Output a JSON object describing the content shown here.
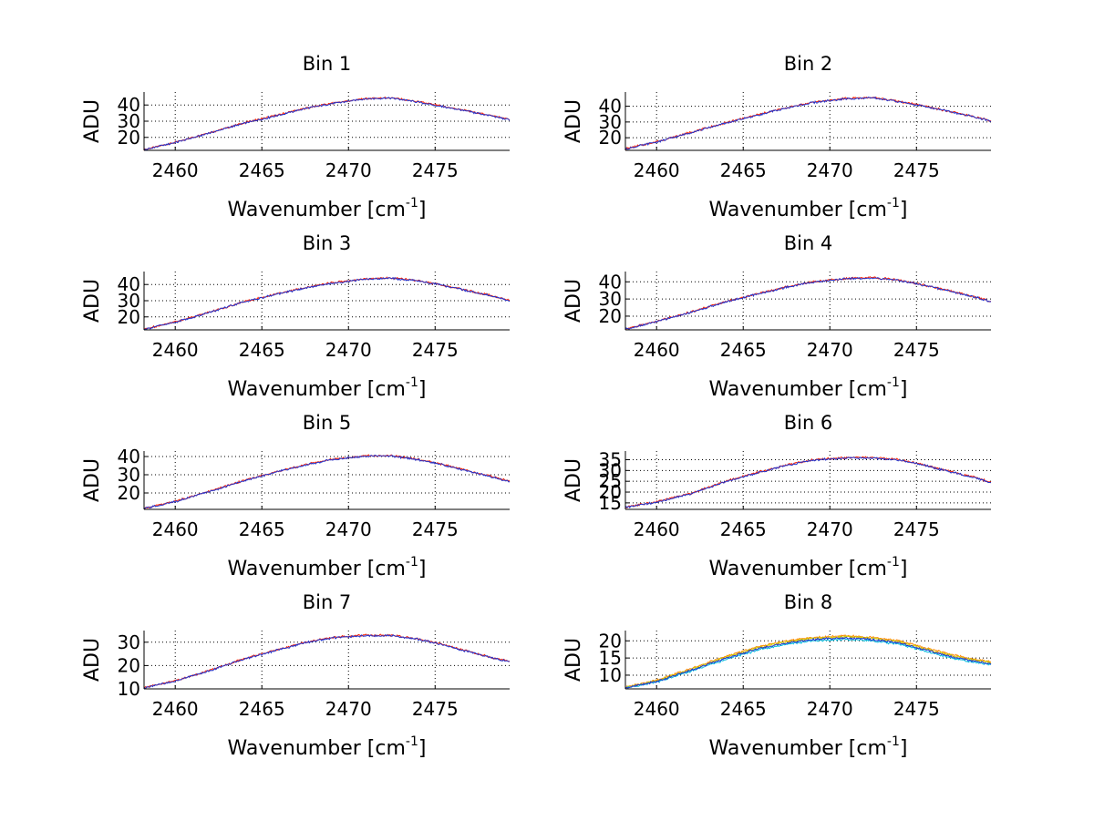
{
  "chart_data": [
    {
      "type": "line",
      "title": "Bin 1",
      "xlabel": "Wavenumber",
      "xlabel_unit_base": "[cm",
      "xlabel_unit_exp": "-1",
      "xlabel_unit_close": "]",
      "ylabel": "ADU",
      "xlim": [
        2458.2,
        2479.3
      ],
      "ylim": [
        12,
        48
      ],
      "xticks": [
        2460,
        2465,
        2470,
        2475
      ],
      "yticks": [
        20,
        30,
        40
      ],
      "grid": true,
      "x_knots": [
        2458.2,
        2460,
        2462,
        2464,
        2466,
        2467.5,
        2469,
        2471,
        2472.5,
        2474,
        2475.5,
        2477,
        2478.5,
        2479.3
      ],
      "series": [
        {
          "name": "Red",
          "color": "#ff2200",
          "values": [
            12.5,
            17,
            23,
            29,
            34,
            38,
            41,
            44,
            44.5,
            42,
            39,
            36,
            33,
            31
          ]
        },
        {
          "name": "Blue",
          "color": "#2233cc",
          "values": [
            12.4,
            16.8,
            22.8,
            28.8,
            33.8,
            37.8,
            40.8,
            43.8,
            44.3,
            41.8,
            38.8,
            35.8,
            32.8,
            30.8
          ]
        }
      ]
    },
    {
      "type": "line",
      "title": "Bin 2",
      "xlabel": "Wavenumber",
      "xlabel_unit_base": "[cm",
      "xlabel_unit_exp": "-1",
      "xlabel_unit_close": "]",
      "ylabel": "ADU",
      "xlim": [
        2458.2,
        2479.3
      ],
      "ylim": [
        12,
        49
      ],
      "xticks": [
        2460,
        2465,
        2470,
        2475
      ],
      "yticks": [
        20,
        30,
        40
      ],
      "grid": true,
      "x_knots": [
        2458.2,
        2460,
        2462,
        2464,
        2466,
        2467.5,
        2469,
        2471,
        2472.5,
        2474,
        2475.5,
        2477,
        2478.5,
        2479.3
      ],
      "series": [
        {
          "name": "Red",
          "color": "#ff2200",
          "values": [
            13,
            17.5,
            23.5,
            29.5,
            35,
            39,
            42.5,
            45,
            45.5,
            43,
            40,
            36.5,
            33,
            30.5
          ]
        },
        {
          "name": "Blue",
          "color": "#2233cc",
          "values": [
            12.9,
            17.3,
            23.3,
            29.3,
            34.8,
            38.8,
            42.3,
            44.8,
            45.3,
            42.8,
            39.8,
            36.3,
            32.8,
            30.3
          ]
        }
      ]
    },
    {
      "type": "line",
      "title": "Bin 3",
      "xlabel": "Wavenumber",
      "xlabel_unit_base": "[cm",
      "xlabel_unit_exp": "-1",
      "xlabel_unit_close": "]",
      "ylabel": "ADU",
      "xlim": [
        2458.2,
        2479.3
      ],
      "ylim": [
        12,
        48
      ],
      "xticks": [
        2460,
        2465,
        2470,
        2475
      ],
      "yticks": [
        20,
        30,
        40
      ],
      "grid": true,
      "x_knots": [
        2458.2,
        2460,
        2462,
        2464,
        2466,
        2467.5,
        2469,
        2471,
        2472.5,
        2474,
        2475.5,
        2477,
        2478.5,
        2479.3
      ],
      "series": [
        {
          "name": "Red",
          "color": "#ff2200",
          "values": [
            12.5,
            17,
            23,
            29.5,
            34.5,
            38,
            41,
            43.5,
            44,
            42.5,
            39.5,
            36,
            32.5,
            30
          ]
        },
        {
          "name": "Blue",
          "color": "#2233cc",
          "values": [
            12.4,
            16.8,
            22.8,
            29.3,
            34.3,
            37.8,
            40.8,
            43.3,
            43.8,
            42.3,
            39.3,
            35.8,
            32.3,
            29.8
          ]
        }
      ]
    },
    {
      "type": "line",
      "title": "Bin 4",
      "xlabel": "Wavenumber",
      "xlabel_unit_base": "[cm",
      "xlabel_unit_exp": "-1",
      "xlabel_unit_close": "]",
      "ylabel": "ADU",
      "xlim": [
        2458.2,
        2479.3
      ],
      "ylim": [
        12,
        46
      ],
      "xticks": [
        2460,
        2465,
        2470,
        2475
      ],
      "yticks": [
        20,
        30,
        40
      ],
      "grid": true,
      "x_knots": [
        2458.2,
        2460,
        2462,
        2464,
        2466,
        2467.5,
        2469,
        2471,
        2472.5,
        2474,
        2475.5,
        2477,
        2478.5,
        2479.3
      ],
      "series": [
        {
          "name": "Red",
          "color": "#ff2200",
          "values": [
            12.5,
            17,
            22.5,
            28.5,
            33.5,
            37,
            40,
            42,
            42.5,
            41,
            38,
            34.5,
            31,
            28.5
          ]
        },
        {
          "name": "Blue",
          "color": "#2233cc",
          "values": [
            12.4,
            16.8,
            22.3,
            28.3,
            33.3,
            36.8,
            39.8,
            41.8,
            42.3,
            40.8,
            37.8,
            34.3,
            30.8,
            28.3
          ]
        }
      ]
    },
    {
      "type": "line",
      "title": "Bin 5",
      "xlabel": "Wavenumber",
      "xlabel_unit_base": "[cm",
      "xlabel_unit_exp": "-1",
      "xlabel_unit_close": "]",
      "ylabel": "ADU",
      "xlim": [
        2458.2,
        2479.3
      ],
      "ylim": [
        11,
        43
      ],
      "xticks": [
        2460,
        2465,
        2470,
        2475
      ],
      "yticks": [
        20,
        30,
        40
      ],
      "grid": true,
      "x_knots": [
        2458.2,
        2460,
        2462,
        2464,
        2466,
        2467.5,
        2469,
        2471,
        2472.5,
        2474,
        2475.5,
        2477,
        2478.5,
        2479.3
      ],
      "series": [
        {
          "name": "Red",
          "color": "#ff2200",
          "values": [
            11.5,
            15.5,
            21,
            27,
            32,
            35.5,
            38.5,
            40.5,
            40.5,
            38.5,
            35.5,
            32,
            28.5,
            26.5
          ]
        },
        {
          "name": "Blue",
          "color": "#2233cc",
          "values": [
            11.4,
            15.3,
            20.8,
            26.8,
            31.8,
            35.3,
            38.3,
            40.3,
            40.3,
            38.3,
            35.3,
            31.8,
            28.3,
            26.3
          ]
        }
      ]
    },
    {
      "type": "line",
      "title": "Bin 6",
      "xlabel": "Wavenumber",
      "xlabel_unit_base": "[cm",
      "xlabel_unit_exp": "-1",
      "xlabel_unit_close": "]",
      "ylabel": "ADU",
      "xlim": [
        2458.2,
        2479.3
      ],
      "ylim": [
        12,
        39
      ],
      "xticks": [
        2460,
        2465,
        2470,
        2475
      ],
      "yticks": [
        15,
        20,
        25,
        30,
        35
      ],
      "grid": true,
      "x_knots": [
        2458.2,
        2460,
        2462,
        2464,
        2466,
        2467.5,
        2469,
        2471,
        2472.5,
        2474,
        2475.5,
        2477,
        2478.5,
        2479.3
      ],
      "series": [
        {
          "name": "Red",
          "color": "#ff2200",
          "values": [
            13,
            15.5,
            19.5,
            25,
            29.5,
            32.5,
            35,
            36,
            36,
            35,
            32.5,
            29.5,
            26.5,
            24.5
          ]
        },
        {
          "name": "Blue",
          "color": "#2233cc",
          "values": [
            12.9,
            15.3,
            19.3,
            24.8,
            29.3,
            32.3,
            34.8,
            35.8,
            35.8,
            34.8,
            32.3,
            29.3,
            26.3,
            24.3
          ]
        }
      ]
    },
    {
      "type": "line",
      "title": "Bin 7",
      "xlabel": "Wavenumber",
      "xlabel_unit_base": "[cm",
      "xlabel_unit_exp": "-1",
      "xlabel_unit_close": "]",
      "ylabel": "ADU",
      "xlim": [
        2458.2,
        2479.3
      ],
      "ylim": [
        10,
        35
      ],
      "xticks": [
        2460,
        2465,
        2470,
        2475
      ],
      "yticks": [
        10,
        20,
        30
      ],
      "grid": true,
      "x_knots": [
        2458.2,
        2460,
        2462,
        2464,
        2466,
        2467.5,
        2469,
        2471,
        2472.5,
        2474,
        2475.5,
        2477,
        2478.5,
        2479.3
      ],
      "series": [
        {
          "name": "Red",
          "color": "#ff2200",
          "values": [
            10.5,
            13.5,
            18,
            23,
            27,
            30,
            32,
            33,
            33,
            31.5,
            29,
            26,
            23,
            22
          ]
        },
        {
          "name": "Blue",
          "color": "#2233cc",
          "values": [
            10.4,
            13.3,
            17.8,
            22.8,
            26.8,
            29.8,
            31.8,
            32.8,
            32.8,
            31.3,
            28.8,
            25.8,
            22.8,
            21.8
          ]
        }
      ]
    },
    {
      "type": "line",
      "title": "Bin 8",
      "xlabel": "Wavenumber",
      "xlabel_unit_base": "[cm",
      "xlabel_unit_exp": "-1",
      "xlabel_unit_close": "]",
      "ylabel": "ADU",
      "xlim": [
        2458.2,
        2479.3
      ],
      "ylim": [
        6,
        23
      ],
      "xticks": [
        2460,
        2465,
        2470,
        2475
      ],
      "yticks": [
        10,
        15,
        20
      ],
      "grid": true,
      "x_knots": [
        2458.2,
        2460,
        2462,
        2464,
        2466,
        2467.5,
        2469,
        2471,
        2472.5,
        2474,
        2475.5,
        2477,
        2478.5,
        2479.3
      ],
      "series": [
        {
          "name": "Orange",
          "color": "#ff8800",
          "values": [
            6.5,
            8.5,
            12,
            15.5,
            18.5,
            20,
            21,
            21.5,
            21,
            20,
            18,
            16,
            14.5,
            14
          ]
        },
        {
          "name": "Yellow",
          "color": "#cccc00",
          "values": [
            6.4,
            8.3,
            11.7,
            15.2,
            18.2,
            19.7,
            20.7,
            21.2,
            20.7,
            19.7,
            17.7,
            15.7,
            14.2,
            13.7
          ]
        },
        {
          "name": "Cyan",
          "color": "#00bbdd",
          "values": [
            6.2,
            8,
            11.2,
            14.6,
            17.5,
            19,
            20,
            20.5,
            20,
            19,
            17,
            15,
            13.6,
            13.1
          ]
        },
        {
          "name": "Blue",
          "color": "#2233cc",
          "values": [
            6.3,
            8.2,
            11.5,
            14.9,
            17.9,
            19.4,
            20.4,
            20.9,
            20.4,
            19.4,
            17.4,
            15.4,
            13.9,
            13.4
          ]
        }
      ]
    }
  ]
}
